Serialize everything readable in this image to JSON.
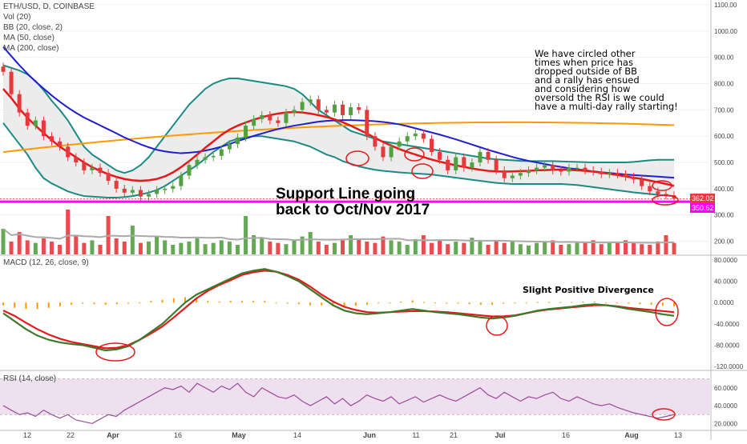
{
  "header": {
    "symbol": "ETH/USD, D, COINBASE",
    "vol_label": "Vol (20)",
    "bb_label": "BB (20, close, 2)",
    "ma50_label": "MA (50, close)",
    "ma200_label": "MA (200, close)",
    "macd_label": "MACD (12, 26, close, 9)",
    "rsi_label": "RSI (14, close)"
  },
  "annotations": {
    "note_lines": [
      "We have circled other",
      "times when price has",
      "dropped outside of BB",
      "and a rally has ensued",
      "and considering how",
      "oversold the RSI is we could",
      "have a multi-day rally starting!"
    ],
    "support_line_1": "Support Line going",
    "support_line_2": "back to Oct/Nov 2017",
    "divergence": "Slight Positive Divergence"
  },
  "price_tags": {
    "current": "362.02",
    "support": "350.62"
  },
  "colors": {
    "bull": "#53a040",
    "bear": "#e5393b",
    "bb_band": "#1a8a85",
    "bb_fill": "#e9e9e9",
    "ma50": "#e31a1c",
    "ma200_blue": "#1f1fcf",
    "ma200_orange": "#ff9900",
    "support": "#ff00ff",
    "macd_line": "#3a7a2a",
    "signal_line": "#e31a1c",
    "hist": "#ff9900",
    "rsi": "#9b4a9b",
    "rsi_band": "#efe0ef",
    "circle": "#e31a1c"
  },
  "chart_data": [
    {
      "type": "line",
      "panel": "price",
      "title": "ETH/USD, D, COINBASE",
      "x_ticks": [
        "12",
        "22",
        "Apr",
        "16",
        "May",
        "14",
        "Jun",
        "11",
        "21",
        "Jul",
        "16",
        "Aug",
        "13"
      ],
      "y_ticks": [
        "200.00",
        "300.00",
        "400.00",
        "500.00",
        "600.00",
        "700.00",
        "800.00",
        "900.00",
        "1000.00",
        "1100.00"
      ],
      "ylim": [
        150,
        1100
      ],
      "y_scale": "linear",
      "close": [
        845,
        760,
        690,
        640,
        660,
        600,
        580,
        560,
        520,
        500,
        470,
        480,
        460,
        430,
        400,
        385,
        395,
        370,
        380,
        395,
        400,
        410,
        450,
        490,
        510,
        520,
        525,
        550,
        570,
        595,
        640,
        665,
        680,
        660,
        650,
        690,
        700,
        730,
        740,
        700,
        690,
        720,
        680,
        710,
        700,
        600,
        560,
        520,
        560,
        580,
        600,
        610,
        590,
        540,
        510,
        470,
        520,
        480,
        500,
        540,
        510,
        470,
        440,
        450,
        460,
        470,
        480,
        490,
        470,
        465,
        480,
        480,
        470,
        465,
        455,
        460,
        455,
        445,
        435,
        410,
        390,
        380,
        375,
        362
      ],
      "ma50": [
        780,
        745,
        705,
        670,
        640,
        612,
        585,
        560,
        540,
        520,
        500,
        482,
        468,
        455,
        445,
        437,
        432,
        430,
        432,
        437,
        447,
        462,
        482,
        505,
        530,
        556,
        580,
        605,
        625,
        640,
        652,
        663,
        672,
        680,
        686,
        690,
        692,
        690,
        686,
        680,
        673,
        664,
        653,
        640,
        625,
        610,
        594,
        578,
        564,
        551,
        540,
        530,
        520,
        511,
        503,
        496,
        489,
        483,
        477,
        472,
        468,
        466,
        465,
        466,
        467,
        468,
        470,
        471,
        472,
        473,
        472,
        470,
        468,
        465,
        461,
        457,
        452,
        447,
        442,
        437,
        431,
        425,
        418,
        411
      ],
      "ma200": [
        940,
        905,
        870,
        838,
        808,
        781,
        755,
        731,
        709,
        689,
        671,
        656,
        641,
        626,
        611,
        595,
        582,
        569,
        558,
        548,
        542,
        538,
        535,
        537,
        540,
        545,
        552,
        560,
        570,
        581,
        591,
        601,
        610,
        619,
        627,
        634,
        640,
        645,
        650,
        655,
        658,
        660,
        661,
        661,
        660,
        659,
        657,
        654,
        650,
        645,
        638,
        630,
        622,
        614,
        606,
        597,
        588,
        578,
        568,
        558,
        548,
        539,
        530,
        521,
        513,
        506,
        500,
        494,
        488,
        483,
        478,
        474,
        470,
        466,
        463,
        460,
        457,
        454,
        452,
        450,
        448,
        446,
        444,
        442
      ],
      "bb_upper": [
        870,
        860,
        850,
        835,
        810,
        775,
        735,
        700,
        660,
        610,
        560,
        530,
        510,
        490,
        470,
        460,
        470,
        490,
        520,
        560,
        600,
        640,
        680,
        720,
        750,
        780,
        800,
        812,
        820,
        820,
        815,
        810,
        805,
        800,
        795,
        790,
        780,
        760,
        730,
        700,
        680,
        660,
        640,
        620,
        610,
        600,
        590,
        580,
        575,
        570,
        565,
        560,
        555,
        550,
        545,
        540,
        535,
        530,
        525,
        520,
        515,
        512,
        510,
        508,
        506,
        505,
        505,
        505,
        505,
        504,
        503,
        502,
        501,
        500,
        500,
        500,
        500,
        500,
        502,
        505,
        508,
        510,
        510,
        510
      ],
      "bb_lower": [
        650,
        610,
        570,
        530,
        480,
        440,
        420,
        405,
        390,
        380,
        372,
        370,
        368,
        366,
        366,
        368,
        372,
        378,
        385,
        395,
        410,
        430,
        450,
        470,
        490,
        515,
        540,
        560,
        580,
        590,
        595,
        600,
        600,
        595,
        590,
        585,
        580,
        570,
        560,
        545,
        530,
        520,
        505,
        495,
        485,
        478,
        472,
        468,
        465,
        462,
        460,
        458,
        456,
        454,
        450,
        446,
        442,
        438,
        434,
        430,
        426,
        422,
        420,
        418,
        418,
        418,
        418,
        418,
        418,
        418,
        416,
        414,
        410,
        406,
        402,
        398,
        394,
        390,
        386,
        383,
        380,
        377,
        374,
        372
      ],
      "volume": [
        40,
        20,
        35,
        22,
        18,
        25,
        20,
        15,
        70,
        30,
        18,
        22,
        15,
        60,
        25,
        20,
        45,
        18,
        20,
        28,
        22,
        15,
        18,
        20,
        25,
        16,
        18,
        22,
        20,
        15,
        60,
        30,
        25,
        20,
        18,
        16,
        22,
        28,
        35,
        20,
        15,
        18,
        22,
        30,
        25,
        20,
        18,
        28,
        22,
        20,
        15,
        24,
        30,
        18,
        22,
        16,
        20,
        18,
        26,
        20,
        15,
        22,
        18,
        20,
        16,
        14,
        18,
        20,
        22,
        15,
        16,
        18,
        20,
        22,
        16,
        18,
        20,
        22,
        18,
        16,
        15,
        20,
        30,
        18
      ],
      "support_level": 350.62,
      "last_price": 362.02
    },
    {
      "type": "line",
      "panel": "macd",
      "title": "MACD (12, 26, close, 9)",
      "y_ticks": [
        "80.0000",
        "40.0000",
        "0.0000",
        "-40.0000",
        "-80.0000",
        "-120.0000"
      ],
      "ylim": [
        -120,
        80
      ],
      "macd": [
        -20,
        -35,
        -50,
        -62,
        -70,
        -75,
        -78,
        -80,
        -85,
        -90,
        -88,
        -82,
        -70,
        -55,
        -40,
        -20,
        0,
        15,
        25,
        35,
        45,
        55,
        60,
        63,
        58,
        50,
        40,
        25,
        10,
        -5,
        -15,
        -20,
        -22,
        -20,
        -18,
        -15,
        -12,
        -15,
        -18,
        -20,
        -22,
        -25,
        -28,
        -30,
        -28,
        -25,
        -20,
        -15,
        -12,
        -10,
        -8,
        -5,
        -3,
        -5,
        -8,
        -12,
        -15,
        -18,
        -22,
        -25
      ],
      "signal": [
        -15,
        -25,
        -38,
        -50,
        -60,
        -68,
        -74,
        -78,
        -82,
        -86,
        -85,
        -80,
        -70,
        -58,
        -45,
        -28,
        -10,
        8,
        22,
        33,
        42,
        52,
        57,
        60,
        58,
        52,
        43,
        30,
        15,
        2,
        -8,
        -14,
        -18,
        -19,
        -18,
        -17,
        -16,
        -16,
        -17,
        -18,
        -20,
        -22,
        -24,
        -26,
        -26,
        -24,
        -20,
        -16,
        -13,
        -11,
        -9,
        -7,
        -5,
        -5,
        -7,
        -10,
        -12,
        -14,
        -16,
        -18
      ],
      "histogram": [
        -5,
        -10,
        -12,
        -12,
        -10,
        -7,
        -4,
        -2,
        -3,
        -4,
        -3,
        -2,
        0,
        3,
        5,
        8,
        10,
        7,
        3,
        2,
        3,
        3,
        3,
        3,
        0,
        -2,
        -3,
        -5,
        -5,
        -7,
        -7,
        -6,
        -4,
        -1,
        0,
        2,
        4,
        1,
        -1,
        -2,
        -2,
        -3,
        -4,
        -4,
        -2,
        -1,
        0,
        1,
        1,
        1,
        1,
        2,
        2,
        0,
        -1,
        -2,
        -3,
        -4,
        -6,
        -7
      ]
    },
    {
      "type": "line",
      "panel": "rsi",
      "title": "RSI (14, close)",
      "y_ticks": [
        "60.0000",
        "40.0000",
        "20.0000"
      ],
      "ylim": [
        15,
        75
      ],
      "band": [
        30,
        70
      ],
      "rsi": [
        40,
        35,
        30,
        32,
        28,
        35,
        30,
        26,
        30,
        24,
        22,
        20,
        25,
        30,
        28,
        35,
        40,
        45,
        50,
        55,
        60,
        58,
        62,
        55,
        65,
        60,
        55,
        62,
        58,
        65,
        55,
        50,
        60,
        55,
        50,
        48,
        52,
        45,
        40,
        45,
        50,
        42,
        48,
        40,
        45,
        52,
        48,
        45,
        50,
        42,
        46,
        50,
        44,
        48,
        52,
        48,
        45,
        50,
        55,
        60,
        52,
        48,
        55,
        50,
        45,
        50,
        48,
        52,
        55,
        48,
        45,
        50,
        46,
        42,
        40,
        42,
        38,
        35,
        32,
        30,
        28,
        26,
        28,
        30
      ]
    }
  ]
}
